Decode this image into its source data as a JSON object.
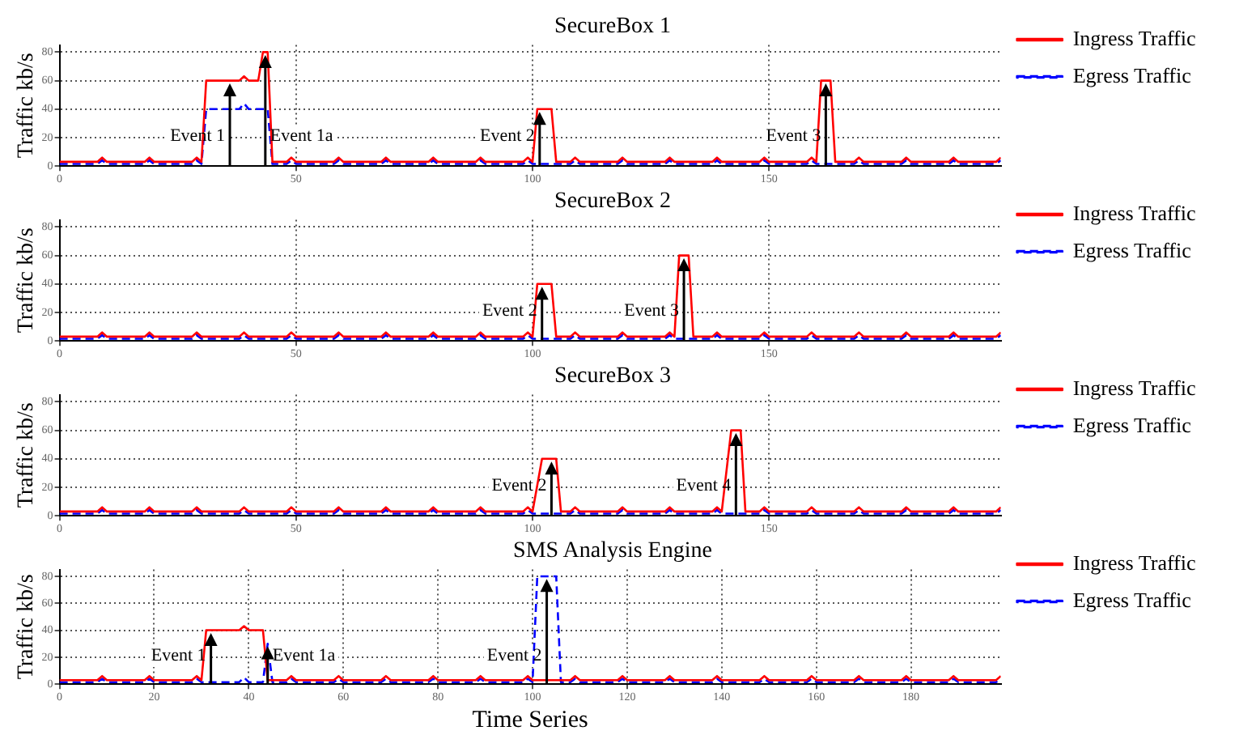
{
  "chart_data": [
    {
      "type": "line",
      "title": "SecureBox 1",
      "ylabel": "Traffic kb/s",
      "xlim": [
        0,
        199
      ],
      "xticks": [
        0,
        50,
        100,
        150
      ],
      "ylim": [
        0,
        85
      ],
      "yticks": [
        0,
        20,
        40,
        60,
        80
      ],
      "grid": true,
      "legend": "top right",
      "marker": "none",
      "series": [
        {
          "name": "Ingress Traffic",
          "color": "#ff0000",
          "line_style": "solid",
          "x": [
            0,
            8,
            9,
            10,
            18,
            19,
            20,
            28,
            29,
            30,
            31,
            38,
            39,
            40,
            42,
            43,
            44,
            45,
            48,
            49,
            50,
            58,
            59,
            60,
            68,
            69,
            70,
            78,
            79,
            80,
            88,
            89,
            90,
            98,
            99,
            100,
            101,
            104,
            105,
            108,
            109,
            110,
            118,
            119,
            120,
            128,
            129,
            130,
            138,
            139,
            140,
            148,
            149,
            150,
            158,
            159,
            160,
            161,
            163,
            164,
            168,
            169,
            170,
            178,
            179,
            180,
            188,
            189,
            190,
            198,
            199
          ],
          "values": [
            3,
            3,
            6,
            3,
            3,
            6,
            3,
            3,
            6,
            3,
            60,
            60,
            63,
            60,
            60,
            80,
            80,
            3,
            3,
            6,
            3,
            3,
            6,
            3,
            3,
            6,
            3,
            3,
            6,
            3,
            3,
            6,
            3,
            3,
            6,
            3,
            40,
            40,
            3,
            3,
            6,
            3,
            3,
            6,
            3,
            3,
            6,
            3,
            3,
            6,
            3,
            3,
            6,
            3,
            3,
            6,
            3,
            60,
            60,
            3,
            3,
            6,
            3,
            3,
            6,
            3,
            3,
            6,
            3,
            3,
            6
          ]
        },
        {
          "name": "Egress Traffic",
          "color": "#0000ff",
          "line_style": "dashed",
          "x": [
            0,
            8,
            9,
            10,
            18,
            19,
            20,
            28,
            29,
            30,
            31,
            38,
            39,
            40,
            44,
            45,
            48,
            49,
            50,
            58,
            59,
            60,
            68,
            69,
            70,
            78,
            79,
            80,
            88,
            89,
            90,
            98,
            99,
            100,
            108,
            109,
            110,
            118,
            119,
            120,
            128,
            129,
            130,
            138,
            139,
            140,
            148,
            149,
            150,
            158,
            159,
            160,
            168,
            169,
            170,
            178,
            179,
            180,
            188,
            189,
            190,
            198,
            199
          ],
          "values": [
            1.5,
            1.5,
            4,
            1.5,
            1.5,
            4,
            1.5,
            1.5,
            4,
            1.5,
            40,
            40,
            44,
            40,
            40,
            1.5,
            1.5,
            4,
            1.5,
            1.5,
            4,
            1.5,
            1.5,
            4,
            1.5,
            1.5,
            4,
            1.5,
            1.5,
            4,
            1.5,
            1.5,
            4,
            1.5,
            1.5,
            4,
            1.5,
            1.5,
            4,
            1.5,
            1.5,
            4,
            1.5,
            1.5,
            4,
            1.5,
            1.5,
            4,
            1.5,
            1.5,
            4,
            1.5,
            1.5,
            4,
            1.5,
            1.5,
            4,
            1.5,
            1.5,
            4,
            1.5,
            1.5,
            4
          ]
        }
      ],
      "annotations": [
        {
          "text": "Event 1",
          "x": 36,
          "y": 58
        },
        {
          "text": "Event 1a",
          "x": 43.5,
          "y": 78
        },
        {
          "text": "Event 2",
          "x": 101.5,
          "y": 38
        },
        {
          "text": "Event 3",
          "x": 162,
          "y": 58
        }
      ]
    },
    {
      "type": "line",
      "title": "SecureBox 2",
      "ylabel": "Traffic kb/s",
      "xlim": [
        0,
        199
      ],
      "xticks": [
        0,
        50,
        100,
        150
      ],
      "ylim": [
        0,
        85
      ],
      "yticks": [
        0,
        20,
        40,
        60,
        80
      ],
      "grid": true,
      "legend": "top right",
      "marker": "none",
      "series": [
        {
          "name": "Ingress Traffic",
          "color": "#ff0000",
          "line_style": "solid",
          "x": [
            0,
            8,
            9,
            10,
            18,
            19,
            20,
            28,
            29,
            30,
            38,
            39,
            40,
            48,
            49,
            50,
            58,
            59,
            60,
            68,
            69,
            70,
            78,
            79,
            80,
            88,
            89,
            90,
            98,
            99,
            100,
            101,
            104,
            105,
            108,
            109,
            110,
            118,
            119,
            120,
            128,
            129,
            130,
            131,
            133,
            134,
            138,
            139,
            140,
            148,
            149,
            150,
            158,
            159,
            160,
            168,
            169,
            170,
            178,
            179,
            180,
            188,
            189,
            190,
            198,
            199
          ],
          "values": [
            3,
            3,
            6,
            3,
            3,
            6,
            3,
            3,
            6,
            3,
            3,
            6,
            3,
            3,
            6,
            3,
            3,
            6,
            3,
            3,
            6,
            3,
            3,
            6,
            3,
            3,
            6,
            3,
            3,
            6,
            3,
            40,
            40,
            3,
            3,
            6,
            3,
            3,
            6,
            3,
            3,
            6,
            3,
            60,
            60,
            3,
            3,
            6,
            3,
            3,
            6,
            3,
            3,
            6,
            3,
            3,
            6,
            3,
            3,
            6,
            3,
            3,
            6,
            3,
            3,
            6
          ]
        },
        {
          "name": "Egress Traffic",
          "color": "#0000ff",
          "line_style": "dashed",
          "x": [
            0,
            8,
            9,
            10,
            18,
            19,
            20,
            28,
            29,
            30,
            38,
            39,
            40,
            48,
            49,
            50,
            58,
            59,
            60,
            68,
            69,
            70,
            78,
            79,
            80,
            88,
            89,
            90,
            98,
            99,
            100,
            108,
            109,
            110,
            118,
            119,
            120,
            128,
            129,
            130,
            138,
            139,
            140,
            148,
            149,
            150,
            158,
            159,
            160,
            168,
            169,
            170,
            178,
            179,
            180,
            188,
            189,
            190,
            198,
            199
          ],
          "values": [
            1.5,
            1.5,
            4,
            1.5,
            1.5,
            4,
            1.5,
            1.5,
            4,
            1.5,
            1.5,
            4,
            1.5,
            1.5,
            4,
            1.5,
            1.5,
            4,
            1.5,
            1.5,
            4,
            1.5,
            1.5,
            4,
            1.5,
            1.5,
            4,
            1.5,
            1.5,
            4,
            1.5,
            1.5,
            4,
            1.5,
            1.5,
            4,
            1.5,
            1.5,
            4,
            1.5,
            1.5,
            4,
            1.5,
            1.5,
            4,
            1.5,
            1.5,
            4,
            1.5,
            1.5,
            4,
            1.5,
            1.5,
            4,
            1.5,
            1.5,
            4,
            1.5,
            1.5,
            4
          ]
        }
      ],
      "annotations": [
        {
          "text": "Event 2",
          "x": 102,
          "y": 38
        },
        {
          "text": "Event 3",
          "x": 132,
          "y": 58
        }
      ]
    },
    {
      "type": "line",
      "title": "SecureBox 3",
      "ylabel": "Traffic kb/s",
      "xlim": [
        0,
        199
      ],
      "xticks": [
        0,
        50,
        100,
        150
      ],
      "ylim": [
        0,
        85
      ],
      "yticks": [
        0,
        20,
        40,
        60,
        80
      ],
      "grid": true,
      "legend": "top right",
      "marker": "none",
      "series": [
        {
          "name": "Ingress Traffic",
          "color": "#ff0000",
          "line_style": "solid",
          "x": [
            0,
            8,
            9,
            10,
            18,
            19,
            20,
            28,
            29,
            30,
            38,
            39,
            40,
            48,
            49,
            50,
            58,
            59,
            60,
            68,
            69,
            70,
            78,
            79,
            80,
            88,
            89,
            90,
            98,
            99,
            100,
            102,
            105,
            106,
            108,
            109,
            110,
            118,
            119,
            120,
            128,
            129,
            130,
            138,
            139,
            140,
            142,
            144,
            145,
            148,
            149,
            150,
            158,
            159,
            160,
            168,
            169,
            170,
            178,
            179,
            180,
            188,
            189,
            190,
            198,
            199
          ],
          "values": [
            3,
            3,
            6,
            3,
            3,
            6,
            3,
            3,
            6,
            3,
            3,
            6,
            3,
            3,
            6,
            3,
            3,
            6,
            3,
            3,
            6,
            3,
            3,
            6,
            3,
            3,
            6,
            3,
            3,
            6,
            3,
            40,
            40,
            3,
            3,
            6,
            3,
            3,
            6,
            3,
            3,
            6,
            3,
            3,
            6,
            3,
            60,
            60,
            3,
            3,
            6,
            3,
            3,
            6,
            3,
            3,
            6,
            3,
            3,
            6,
            3,
            3,
            6,
            3,
            3,
            6
          ]
        },
        {
          "name": "Egress Traffic",
          "color": "#0000ff",
          "line_style": "dashed",
          "x": [
            0,
            8,
            9,
            10,
            18,
            19,
            20,
            28,
            29,
            30,
            38,
            39,
            40,
            48,
            49,
            50,
            58,
            59,
            60,
            68,
            69,
            70,
            78,
            79,
            80,
            88,
            89,
            90,
            98,
            99,
            100,
            108,
            109,
            110,
            118,
            119,
            120,
            128,
            129,
            130,
            138,
            139,
            140,
            148,
            149,
            150,
            158,
            159,
            160,
            168,
            169,
            170,
            178,
            179,
            180,
            188,
            189,
            190,
            198,
            199
          ],
          "values": [
            1.5,
            1.5,
            4,
            1.5,
            1.5,
            4,
            1.5,
            1.5,
            4,
            1.5,
            1.5,
            4,
            1.5,
            1.5,
            4,
            1.5,
            1.5,
            4,
            1.5,
            1.5,
            4,
            1.5,
            1.5,
            4,
            1.5,
            1.5,
            4,
            1.5,
            1.5,
            4,
            1.5,
            1.5,
            4,
            1.5,
            1.5,
            4,
            1.5,
            1.5,
            4,
            1.5,
            1.5,
            4,
            1.5,
            1.5,
            4,
            1.5,
            1.5,
            4,
            1.5,
            1.5,
            4,
            1.5,
            1.5,
            4,
            1.5,
            1.5,
            4,
            1.5,
            1.5,
            4
          ]
        }
      ],
      "annotations": [
        {
          "text": "Event 2",
          "x": 104,
          "y": 38
        },
        {
          "text": "Event 4",
          "x": 143,
          "y": 58
        }
      ]
    },
    {
      "type": "line",
      "title": "SMS Analysis Engine",
      "xlabel": "Time Series",
      "ylabel": "Traffic kb/s",
      "xlim": [
        0,
        199
      ],
      "xticks": [
        0,
        20,
        40,
        60,
        80,
        100,
        120,
        140,
        160,
        180
      ],
      "ylim": [
        0,
        85
      ],
      "yticks": [
        0,
        20,
        40,
        60,
        80
      ],
      "grid": true,
      "legend": "top right",
      "marker": "none",
      "series": [
        {
          "name": "Ingress Traffic",
          "color": "#ff0000",
          "line_style": "solid",
          "x": [
            0,
            8,
            9,
            10,
            18,
            19,
            20,
            28,
            29,
            30,
            31,
            38,
            39,
            40,
            43,
            44,
            48,
            49,
            50,
            58,
            59,
            60,
            68,
            69,
            70,
            78,
            79,
            80,
            88,
            89,
            90,
            98,
            99,
            100,
            108,
            109,
            110,
            118,
            119,
            120,
            128,
            129,
            130,
            138,
            139,
            140,
            148,
            149,
            150,
            158,
            159,
            160,
            168,
            169,
            170,
            178,
            179,
            180,
            188,
            189,
            190,
            198,
            199
          ],
          "values": [
            3,
            3,
            6,
            3,
            3,
            6,
            3,
            3,
            6,
            3,
            40,
            40,
            43,
            40,
            40,
            3,
            3,
            6,
            3,
            3,
            6,
            3,
            3,
            6,
            3,
            3,
            6,
            3,
            3,
            6,
            3,
            3,
            6,
            3,
            3,
            6,
            3,
            3,
            6,
            3,
            3,
            6,
            3,
            3,
            6,
            3,
            3,
            6,
            3,
            3,
            6,
            3,
            3,
            6,
            3,
            3,
            6,
            3,
            3,
            6,
            3,
            3,
            6
          ]
        },
        {
          "name": "Egress Traffic",
          "color": "#0000ff",
          "line_style": "dashed",
          "x": [
            0,
            8,
            9,
            10,
            18,
            19,
            20,
            28,
            29,
            30,
            38,
            39,
            40,
            43,
            44,
            45,
            48,
            49,
            50,
            58,
            59,
            60,
            68,
            69,
            70,
            78,
            79,
            80,
            88,
            89,
            90,
            98,
            99,
            100,
            101,
            105,
            106,
            108,
            109,
            110,
            118,
            119,
            120,
            128,
            129,
            130,
            138,
            139,
            140,
            148,
            149,
            150,
            158,
            159,
            160,
            168,
            169,
            170,
            178,
            179,
            180,
            188,
            189,
            190,
            198,
            199
          ],
          "values": [
            1.5,
            1.5,
            4,
            1.5,
            1.5,
            4,
            1.5,
            1.5,
            4,
            1.5,
            1.5,
            5,
            1.5,
            1.5,
            30,
            1.5,
            1.5,
            4,
            1.5,
            1.5,
            4,
            1.5,
            1.5,
            4,
            1.5,
            1.5,
            4,
            1.5,
            1.5,
            4,
            1.5,
            1.5,
            4,
            1.5,
            80,
            80,
            1.5,
            1.5,
            4,
            1.5,
            1.5,
            4,
            1.5,
            1.5,
            4,
            1.5,
            1.5,
            4,
            1.5,
            1.5,
            4,
            1.5,
            1.5,
            4,
            1.5,
            1.5,
            4,
            1.5,
            1.5,
            4,
            1.5,
            1.5,
            4,
            1.5,
            1.5,
            4
          ]
        }
      ],
      "annotations": [
        {
          "text": "Event 1",
          "x": 32,
          "y": 38
        },
        {
          "text": "Event 1a",
          "x": 44,
          "y": 28
        },
        {
          "text": "Event 2",
          "x": 103,
          "y": 78
        }
      ]
    }
  ]
}
